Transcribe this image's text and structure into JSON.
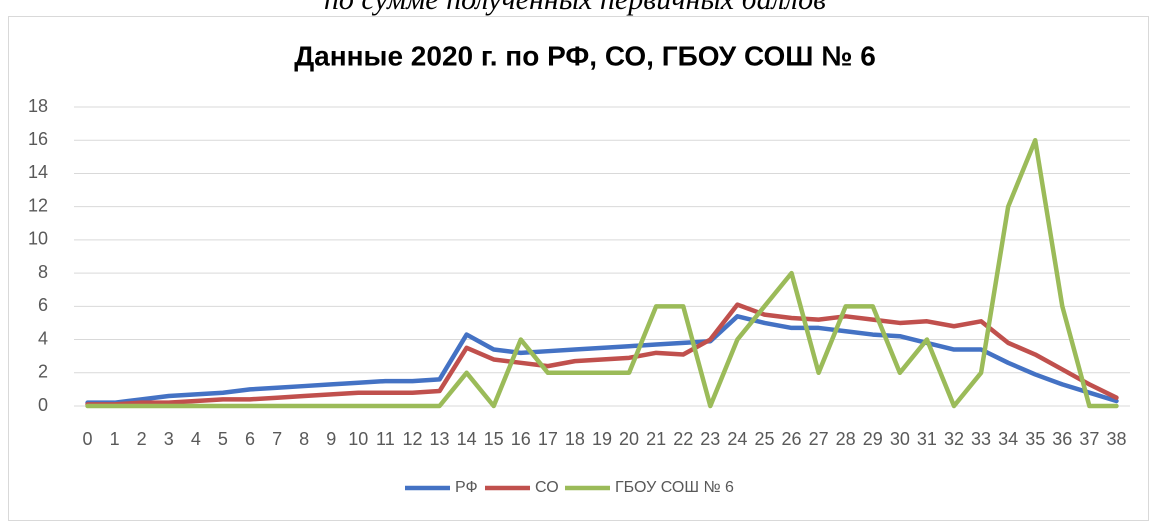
{
  "chart_data": {
    "type": "line",
    "subtitle": "по сумме полученных первичных баллов",
    "title": "Данные 2020 г. по РФ, СО, ГБОУ СОШ № 6",
    "categories": [
      0,
      1,
      2,
      3,
      4,
      5,
      6,
      7,
      8,
      9,
      10,
      11,
      12,
      13,
      14,
      15,
      16,
      17,
      18,
      19,
      20,
      21,
      22,
      23,
      24,
      25,
      26,
      27,
      28,
      29,
      30,
      31,
      32,
      33,
      34,
      35,
      36,
      37,
      38
    ],
    "series": [
      {
        "name": "РФ",
        "color": "#4472c4",
        "values": [
          0.2,
          0.2,
          0.4,
          0.6,
          0.7,
          0.8,
          1.0,
          1.1,
          1.2,
          1.3,
          1.4,
          1.5,
          1.5,
          1.6,
          4.3,
          3.4,
          3.2,
          3.3,
          3.4,
          3.5,
          3.6,
          3.7,
          3.8,
          3.9,
          5.4,
          5.0,
          4.7,
          4.7,
          4.5,
          4.3,
          4.2,
          3.8,
          3.4,
          3.4,
          2.6,
          1.9,
          1.3,
          0.8,
          0.3
        ]
      },
      {
        "name": "СО",
        "color": "#c0504d",
        "values": [
          0.1,
          0.1,
          0.2,
          0.2,
          0.3,
          0.4,
          0.4,
          0.5,
          0.6,
          0.7,
          0.8,
          0.8,
          0.8,
          0.9,
          3.5,
          2.8,
          2.6,
          2.4,
          2.7,
          2.8,
          2.9,
          3.2,
          3.1,
          4.0,
          6.1,
          5.5,
          5.3,
          5.2,
          5.4,
          5.2,
          5.0,
          5.1,
          4.8,
          5.1,
          3.8,
          3.1,
          2.2,
          1.3,
          0.5
        ]
      },
      {
        "name": "ГБОУ СОШ № 6",
        "color": "#9bbb59",
        "values": [
          0,
          0,
          0,
          0,
          0,
          0,
          0,
          0,
          0,
          0,
          0,
          0,
          0,
          0,
          2,
          0,
          4,
          2,
          2,
          2,
          2,
          6,
          6,
          0,
          4,
          6,
          8,
          2,
          6,
          6,
          2,
          4,
          0,
          2,
          12,
          16,
          6,
          0,
          0
        ]
      }
    ],
    "ylim": [
      0,
      18
    ],
    "yticks": [
      0,
      2,
      4,
      6,
      8,
      10,
      12,
      14,
      16,
      18
    ],
    "grid": true,
    "legend": "bottom"
  }
}
